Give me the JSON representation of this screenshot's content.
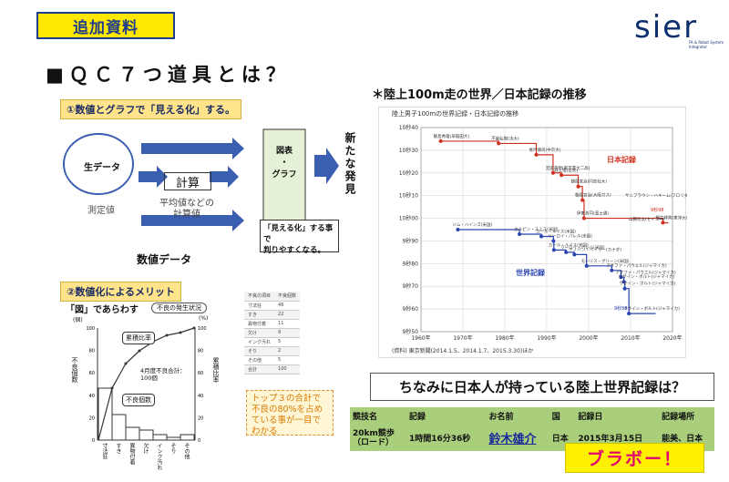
{
  "header": {
    "badge": "追加資料",
    "logo_word": "sier",
    "logo_sub": "FA & Robot System Integrator"
  },
  "title": "■ＱＣ７つ道具とは？",
  "section1": {
    "label": "①数値とグラフで「見える化」する。",
    "raw_data": "生データ",
    "measured": "測定値",
    "calc": "計算",
    "calc_desc_1": "平均値などの",
    "calc_desc_2": "計算値",
    "chart_box": "図表\n・\nグラフ",
    "numeric_data": "数値データ",
    "new_discovery": "新たな発見",
    "callout": "「見える化」する事で\n判りやすくなる。"
  },
  "section2": {
    "label": "②数値化によるメリット",
    "figure_title": "「図」であらわす",
    "legend": "不良の発生状況",
    "ylabel_left": "不良個数",
    "ylabel_right": "累積比率",
    "unit_left": "(個)",
    "unit_right": "(%)",
    "cum_label": "累積比率",
    "defect_label": "不良個数",
    "month_note": "4月度不良合計：\n100個",
    "left_ticks": [
      "100",
      "80",
      "60",
      "40",
      "20",
      "0"
    ],
    "right_ticks": [
      "100",
      "80",
      "60",
      "40",
      "20",
      "0"
    ],
    "categories": [
      "寸法狂",
      "すき",
      "異物付着",
      "欠け",
      "インク汚れ",
      "そり",
      "その他"
    ],
    "mini_table": {
      "headers": [
        "不良の項目",
        "不良個数"
      ],
      "rows": [
        [
          "寸法狂",
          "46"
        ],
        [
          "すき",
          "22"
        ],
        [
          "異物付着",
          "11"
        ],
        [
          "欠け",
          "9"
        ],
        [
          "インク汚れ",
          "5"
        ],
        [
          "そり",
          "2"
        ],
        [
          "その他",
          "5"
        ],
        [
          "合計",
          "100"
        ]
      ]
    },
    "orange_note": "トップ３の合計で不良の80%を占めている事が一目でわかる"
  },
  "record_chart": {
    "heading": "＊陸上100m走の世界／日本記録の推移",
    "inner_title": "陸上男子100mの世界記録・日本記録の推移",
    "source": "(資料) 東京新聞(2014.1.5、2014.1.7、2015.3.30)ほか",
    "japan_label": "日本記録",
    "world_label": "世界記録"
  },
  "chart_data": {
    "type": "line",
    "title": "陸上男子100mの世界記録・日本記録の推移",
    "xlabel": "",
    "ylabel": "",
    "xlim": [
      1960,
      2020
    ],
    "ylim": [
      9.5,
      10.4
    ],
    "x_ticks": [
      "1960年",
      "1970年",
      "1980年",
      "1990年",
      "2000年",
      "2010年",
      "2020年"
    ],
    "y_ticks": [
      "10秒40",
      "10秒30",
      "10秒20",
      "10秒10",
      "10秒00",
      "9秒90",
      "9秒80",
      "9秒70",
      "9秒60",
      "9秒50"
    ],
    "series": [
      {
        "name": "日本記録",
        "color": "#d03020",
        "points": [
          [
            1964.7,
            10.34
          ],
          [
            1978.5,
            10.33
          ],
          [
            1987.5,
            10.28
          ],
          [
            1991.5,
            10.2
          ],
          [
            1993.5,
            10.19
          ],
          [
            1997.5,
            10.14
          ],
          [
            1998.5,
            10.08
          ],
          [
            1998.9,
            10.0
          ],
          [
            2017.7,
            9.98
          ]
        ],
        "labels": [
          "飯島秀雄(早稲田大)",
          "不破弘樹(法大)",
          "青戸慎司(中京大)",
          "宮田英明(東京農大二高)",
          "井上悟(日大)",
          "朝原宣治(同志社大)",
          "朝原宣治(大阪ガス)",
          "伊東浩司(富士通)",
          "桐生祥秀(東洋大)"
        ]
      },
      {
        "name": "世界記録",
        "color": "#2a44b0",
        "points": [
          [
            1968.8,
            9.95
          ],
          [
            1983.5,
            9.93
          ],
          [
            1988.7,
            9.92
          ],
          [
            1991.6,
            9.9
          ],
          [
            1991.7,
            9.86
          ],
          [
            1994.6,
            9.85
          ],
          [
            1996.6,
            9.84
          ],
          [
            1999.5,
            9.79
          ],
          [
            2005.5,
            9.77
          ],
          [
            2007.7,
            9.74
          ],
          [
            2008.4,
            9.72
          ],
          [
            2008.6,
            9.69
          ],
          [
            2009.6,
            9.58
          ]
        ],
        "labels": [
          "ジム・ハインズ(米国)",
          "カルビン・スミス(米国)",
          "カール・ルイス(米国)",
          "リーロイ・バレル(米国)",
          "カール・ルイス(米国)",
          "リーロイ・バレル(米国)",
          "ドノバン・ベイリー(カナダ)",
          "モーリス・グリーン(米国)",
          "アサファ・パウエル(ジャマイカ)",
          "アサファ・パウエル(ジャマイカ)",
          "ウサイン・ボルト(ジャマイカ)",
          "ウサイン・ボルト(ジャマイカ)",
          "ウサイン・ボルト(ジャマイカ)"
        ]
      }
    ],
    "annotations": [
      "9秒98",
      "9秒58",
      "サニブラウン・ハキーム(フロリダ大)",
      "山縣亮太(セイコー)"
    ]
  },
  "question": "ちなみに日本人が持っている陸上世界記録は？",
  "record_table": {
    "headers": [
      "競技名",
      "記録",
      "お名前",
      "国",
      "記録日",
      "記録場所"
    ],
    "row": [
      "20km競歩\n（ロード）",
      "1時間16分36秒",
      "鈴木雄介",
      "日本",
      "2015年3月15日",
      "能美、日本"
    ]
  },
  "bravo": "ブラボー！"
}
